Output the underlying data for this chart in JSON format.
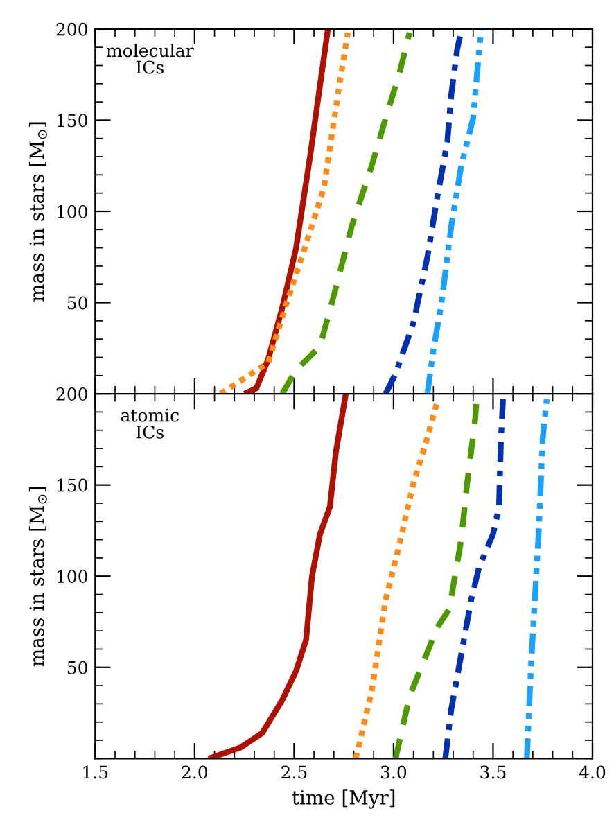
{
  "chart_data": [
    {
      "type": "line",
      "xlim": [
        1.5,
        4.0
      ],
      "ylim": [
        0,
        200
      ],
      "xticks": [
        1.5,
        2.0,
        2.5,
        3.0,
        3.5,
        4.0
      ],
      "yticks": [
        50,
        100,
        150,
        200
      ],
      "tick_labels": "y",
      "ylabel": "mass in stars [M$_{⊙}$]",
      "annotations": [
        "molecular\nICs"
      ],
      "grid": false,
      "series": [
        {
          "color": "#b01000",
          "line_style": "solid",
          "x": [
            2.25,
            2.31,
            2.37,
            2.44,
            2.51,
            2.58,
            2.63,
            2.67
          ],
          "values": [
            0,
            3,
            19,
            47,
            80,
            130,
            169,
            200
          ]
        },
        {
          "color": "#ff8c1a",
          "line_style": "dotted",
          "x": [
            2.13,
            2.37,
            2.46,
            2.56,
            2.65,
            2.72,
            2.77
          ],
          "values": [
            0,
            17,
            49,
            82,
            113,
            164,
            198
          ]
        },
        {
          "color": "#4c9a00",
          "line_style": "dashed",
          "x": [
            2.44,
            2.51,
            2.63,
            2.7,
            2.79,
            2.89,
            2.96,
            3.03,
            3.08
          ],
          "values": [
            0,
            13,
            26,
            54,
            92,
            125,
            151,
            176,
            198
          ]
        },
        {
          "color": "#0030b0",
          "line_style": "dashdot",
          "x": [
            2.96,
            3.01,
            3.1,
            3.17,
            3.22,
            3.27,
            3.29,
            3.32,
            3.34
          ],
          "values": [
            0,
            11,
            39,
            75,
            108,
            138,
            164,
            189,
            199
          ]
        },
        {
          "color": "#1aa0ff",
          "line_style": "dashdotdot",
          "x": [
            3.17,
            3.2,
            3.24,
            3.29,
            3.34,
            3.4,
            3.42,
            3.44
          ],
          "values": [
            0,
            24,
            49,
            92,
            125,
            151,
            176,
            200
          ]
        }
      ]
    },
    {
      "type": "line",
      "xlim": [
        1.5,
        4.0
      ],
      "ylim": [
        0,
        200
      ],
      "xticks": [
        {
          "value": 1.5,
          "label": "1.5"
        },
        {
          "value": 2.0,
          "label": "2.0"
        },
        {
          "value": 2.5,
          "label": "2.5"
        },
        {
          "value": 3.0,
          "label": "3.0"
        },
        {
          "value": 3.5,
          "label": "3.5"
        },
        {
          "value": 4.0,
          "label": "4.0"
        }
      ],
      "yticks": [
        50,
        100,
        150,
        200
      ],
      "xlabel": "time [Myr]",
      "ylabel": "mass in stars [M$_{⊙}$]",
      "annotations": [
        "atomic\nICs"
      ],
      "grid": false,
      "series": [
        {
          "color": "#b01000",
          "line_style": "solid",
          "x": [
            2.07,
            2.23,
            2.34,
            2.44,
            2.51,
            2.56,
            2.59,
            2.63,
            2.68,
            2.71,
            2.76
          ],
          "values": [
            0,
            6,
            14,
            32,
            48,
            65,
            100,
            123,
            138,
            168,
            200
          ]
        },
        {
          "color": "#ff8c1a",
          "line_style": "dotted",
          "x": [
            2.81,
            2.89,
            2.96,
            3.02,
            3.1,
            3.17,
            3.22
          ],
          "values": [
            0,
            37,
            87,
            113,
            151,
            176,
            196
          ]
        },
        {
          "color": "#4c9a00",
          "line_style": "dashed",
          "x": [
            3.01,
            3.08,
            3.22,
            3.28,
            3.34,
            3.37,
            3.41,
            3.42
          ],
          "values": [
            0,
            34,
            72,
            82,
            120,
            151,
            186,
            200
          ]
        },
        {
          "color": "#0030b0",
          "line_style": "dashdot",
          "x": [
            3.26,
            3.29,
            3.39,
            3.43,
            3.5,
            3.53,
            3.54,
            3.55
          ],
          "values": [
            0,
            27,
            87,
            105,
            123,
            138,
            176,
            197
          ]
        },
        {
          "color": "#1aa0ff",
          "line_style": "dashdotdot",
          "x": [
            3.67,
            3.69,
            3.73,
            3.75,
            3.77
          ],
          "values": [
            0,
            49,
            125,
            176,
            197
          ]
        }
      ]
    }
  ]
}
